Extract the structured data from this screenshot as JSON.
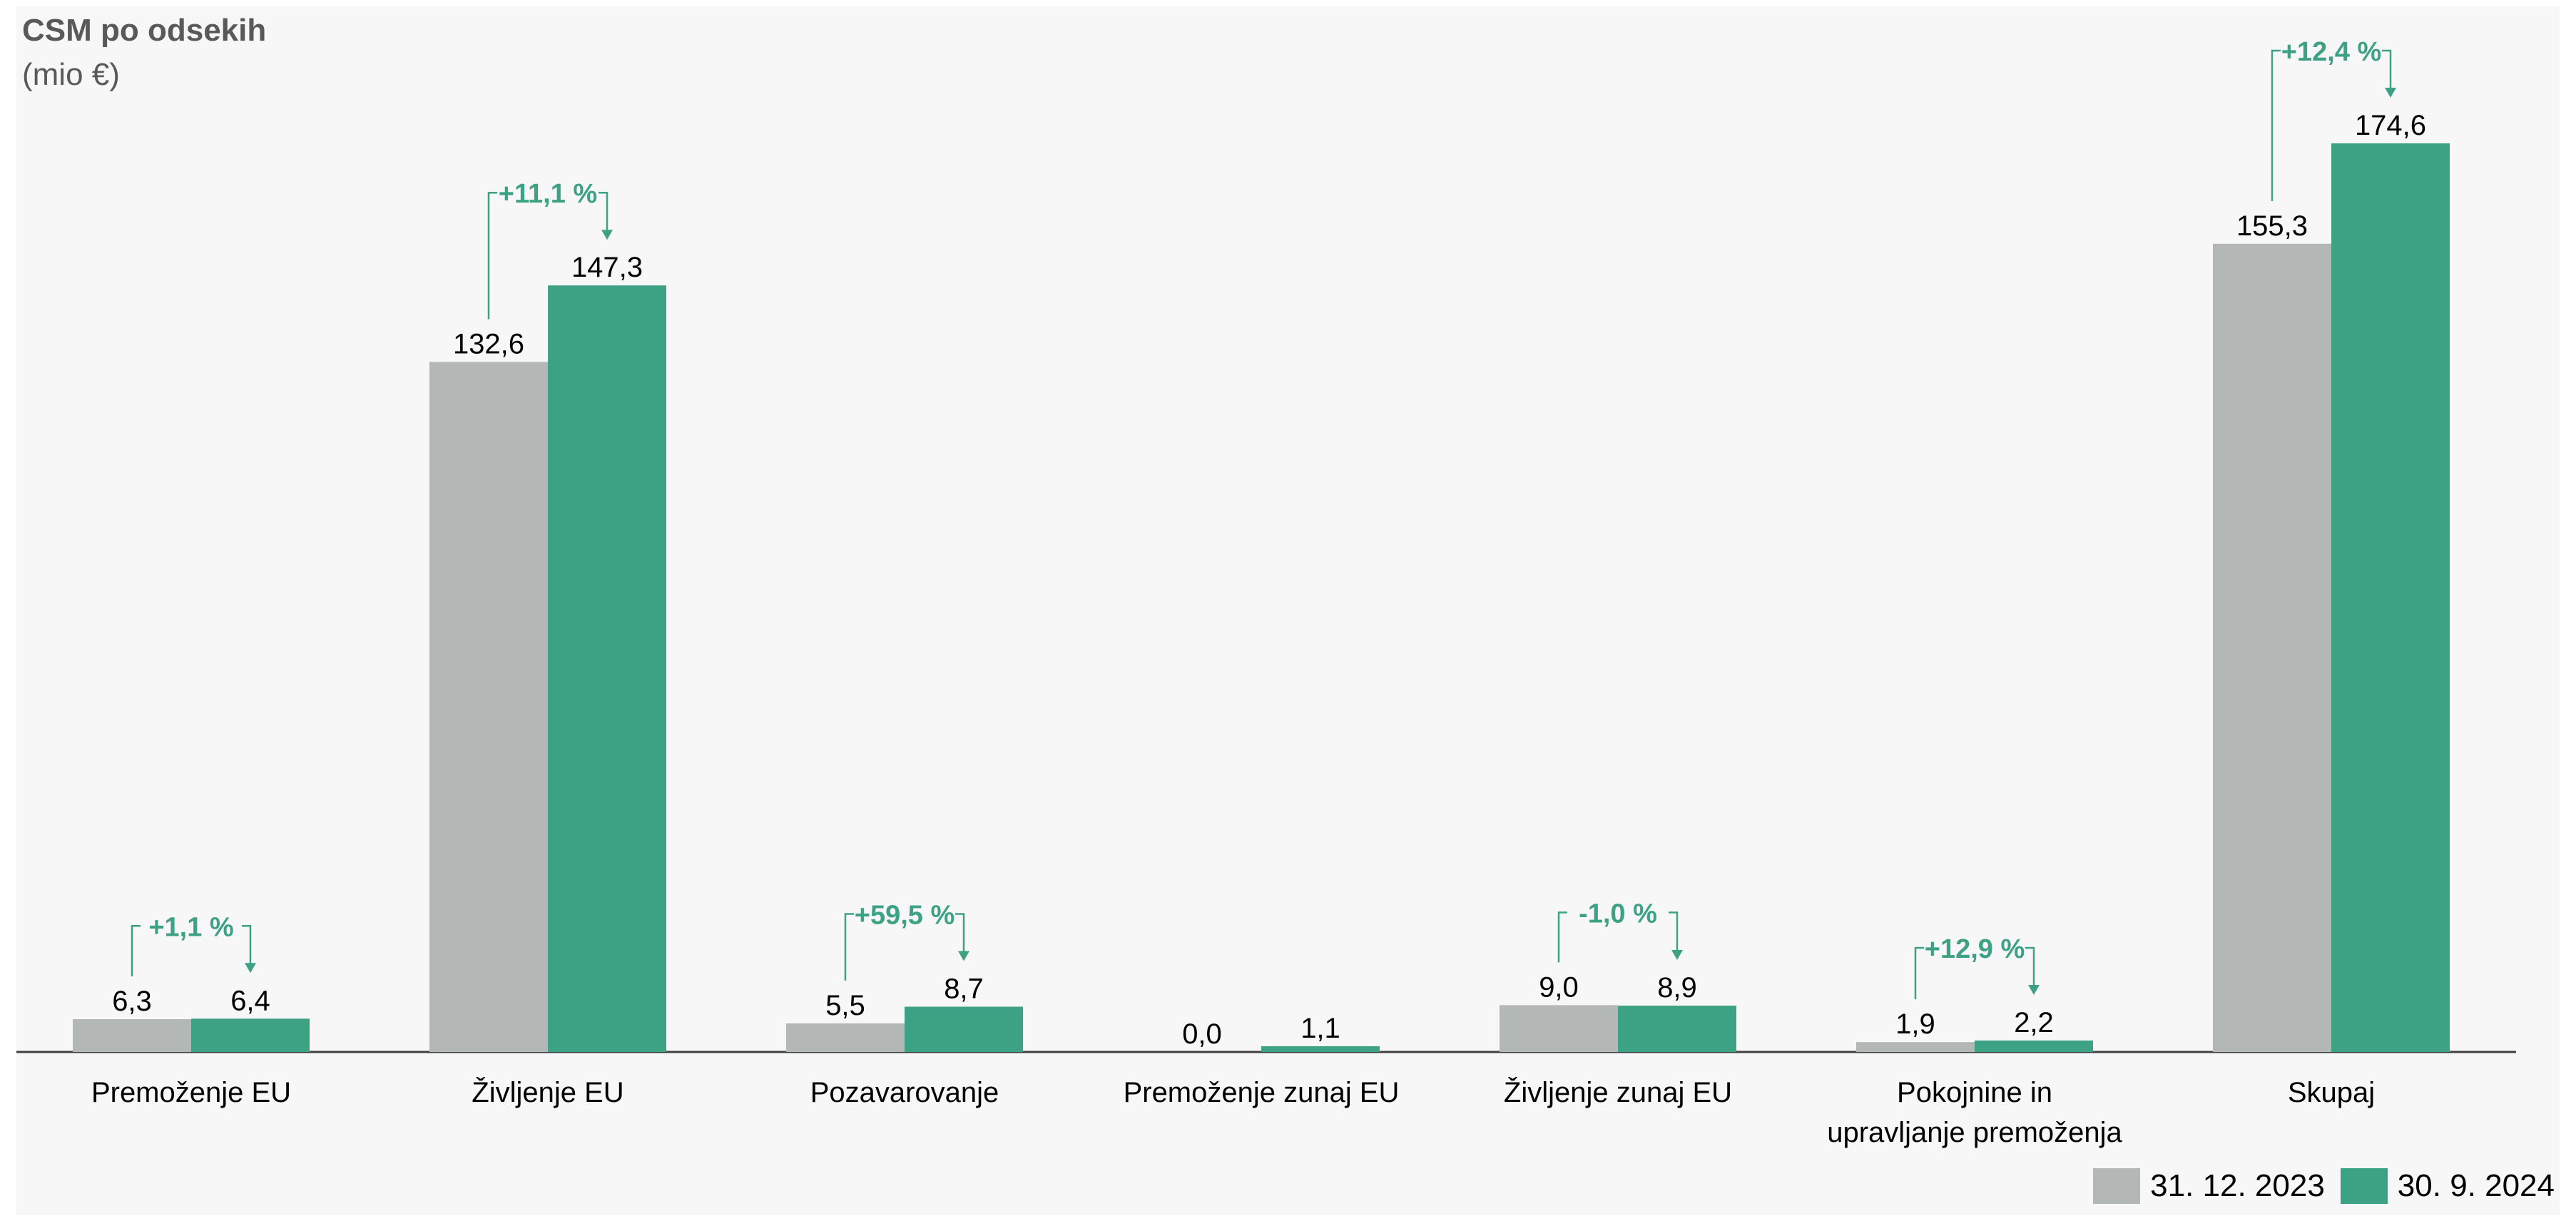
{
  "chart_data": {
    "type": "bar",
    "title": "CSM po odsekih",
    "subtitle": "(mio €)",
    "categories": [
      [
        "Premoženje EU"
      ],
      [
        "Življenje EU"
      ],
      [
        "Pozavarovanje"
      ],
      [
        "Premoženje zunaj EU"
      ],
      [
        "Življenje zunaj EU"
      ],
      [
        "Pokojnine in",
        "upravljanje premoženja"
      ],
      [
        "Skupaj"
      ]
    ],
    "series": [
      {
        "name": "31. 12. 2023",
        "color": "#b3b8b7",
        "values": [
          6.3,
          132.6,
          5.5,
          0.0,
          9.0,
          1.9,
          155.3
        ],
        "labels": [
          "6,3",
          "132,6",
          "5,5",
          "0,0",
          "9,0",
          "1,9",
          "155,3"
        ]
      },
      {
        "name": "30. 9. 2024",
        "color": "#3da284",
        "values": [
          6.4,
          147.3,
          8.7,
          1.1,
          8.9,
          2.2,
          174.6
        ],
        "labels": [
          "6,4",
          "147,3",
          "8,7",
          "1,1",
          "8,9",
          "2,2",
          "174,6"
        ]
      }
    ],
    "changes": [
      "+1,1 %",
      "+11,1 %",
      "+59,5 %",
      null,
      "-1,0 %",
      "+12,9 %",
      "+12,4 %"
    ],
    "ylim": [
      0,
      200
    ],
    "grid": false,
    "legend": "bottom-right",
    "change_color": "#3da284"
  }
}
